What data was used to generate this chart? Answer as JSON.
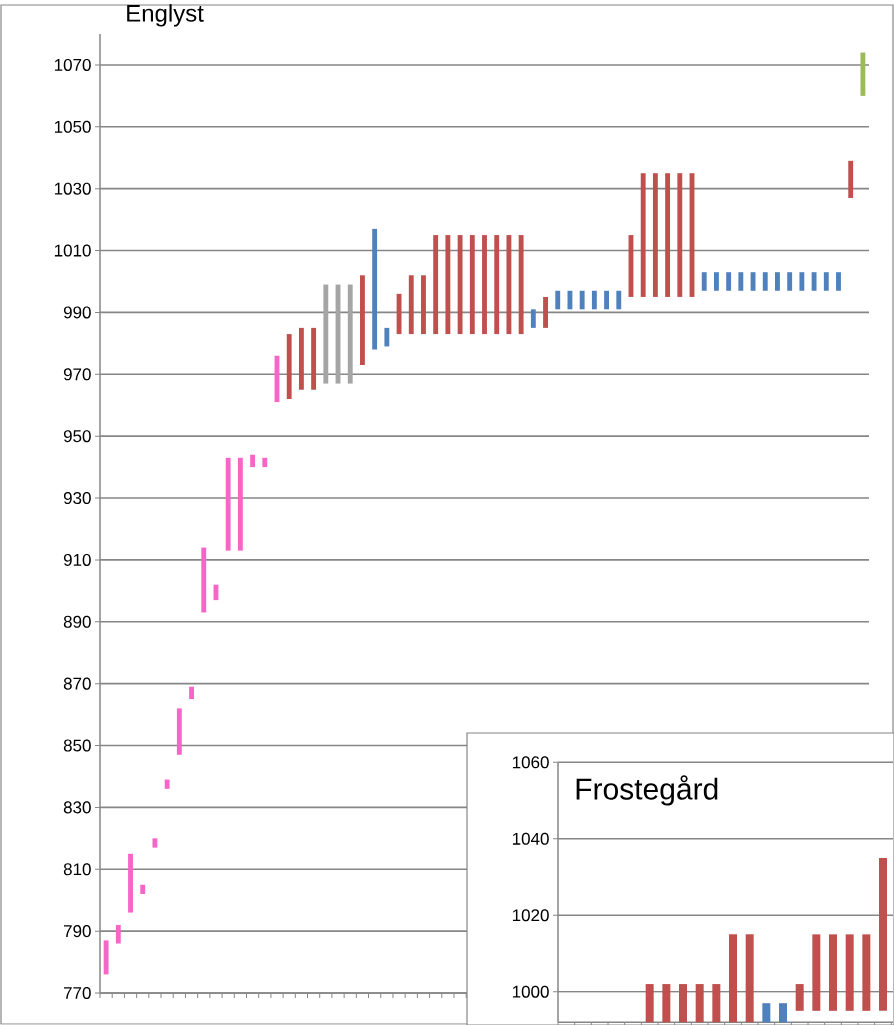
{
  "chart_data": [
    {
      "type": "bar",
      "title": "Englyst",
      "categories": [
        null,
        null,
        null,
        null,
        null,
        null,
        null,
        null,
        null,
        null,
        null,
        null,
        null,
        null,
        null,
        null,
        null,
        null,
        null,
        null,
        null,
        null,
        null,
        null,
        null,
        null,
        null,
        null,
        null,
        null,
        null,
        null,
        null,
        null,
        null,
        null,
        null,
        null,
        null,
        null,
        null,
        null,
        null,
        null,
        null,
        null,
        null,
        null,
        null,
        null,
        null,
        null,
        null,
        null,
        null,
        null,
        null,
        null,
        null,
        null,
        null,
        null,
        null
      ],
      "base": [
        776,
        786,
        796,
        802,
        817,
        836,
        847,
        865,
        893,
        897,
        913,
        913,
        940,
        940,
        961,
        962,
        965,
        965,
        967,
        967,
        967,
        973,
        978,
        979,
        983,
        983,
        983,
        983,
        983,
        983,
        983,
        983,
        983,
        983,
        983,
        985,
        985,
        991,
        991,
        991,
        991,
        991,
        991,
        995,
        995,
        995,
        995,
        995,
        995,
        997,
        997,
        997,
        997,
        997,
        997,
        997,
        997,
        997,
        997,
        997,
        997,
        1027,
        1060
      ],
      "values": [
        11,
        6,
        19,
        3,
        3,
        3,
        15,
        4,
        21,
        5,
        30,
        30,
        4,
        3,
        15,
        21,
        20,
        20,
        32,
        32,
        32,
        29,
        39,
        6,
        13,
        19,
        19,
        32,
        32,
        32,
        32,
        32,
        32,
        32,
        32,
        6,
        10,
        6,
        6,
        6,
        6,
        6,
        6,
        20,
        40,
        40,
        40,
        40,
        40,
        6,
        6,
        6,
        6,
        6,
        6,
        6,
        6,
        6,
        6,
        6,
        6,
        12,
        14
      ],
      "colors": [
        "#f766c7",
        "#f766c7",
        "#f766c7",
        "#f766c7",
        "#f766c7",
        "#f766c7",
        "#f766c7",
        "#f766c7",
        "#f766c7",
        "#f766c7",
        "#f766c7",
        "#f766c7",
        "#f766c7",
        "#f766c7",
        "#f766c7",
        "#c0504d",
        "#c0504d",
        "#c0504d",
        "#a5a5a5",
        "#a5a5a5",
        "#a5a5a5",
        "#c0504d",
        "#4f81bd",
        "#4f81bd",
        "#c0504d",
        "#c0504d",
        "#c0504d",
        "#c0504d",
        "#c0504d",
        "#c0504d",
        "#c0504d",
        "#c0504d",
        "#c0504d",
        "#c0504d",
        "#c0504d",
        "#4f81bd",
        "#c0504d",
        "#4f81bd",
        "#4f81bd",
        "#4f81bd",
        "#4f81bd",
        "#4f81bd",
        "#4f81bd",
        "#c0504d",
        "#c0504d",
        "#c0504d",
        "#c0504d",
        "#c0504d",
        "#c0504d",
        "#4f81bd",
        "#4f81bd",
        "#4f81bd",
        "#4f81bd",
        "#4f81bd",
        "#4f81bd",
        "#4f81bd",
        "#4f81bd",
        "#4f81bd",
        "#4f81bd",
        "#4f81bd",
        "#4f81bd",
        "#c0504d",
        "#9bbb59"
      ],
      "ylim": [
        770,
        1080
      ],
      "yticks": [
        770,
        790,
        810,
        830,
        850,
        870,
        890,
        910,
        930,
        950,
        970,
        990,
        1010,
        1030,
        1050,
        1070
      ],
      "grid": "y",
      "tick_labels": "y"
    },
    {
      "type": "bar",
      "title": "Frostegård",
      "categories": [
        null,
        null,
        null,
        null,
        null,
        null,
        null,
        null,
        null,
        null,
        null,
        null,
        null,
        null,
        null,
        null,
        null,
        null,
        null,
        null
      ],
      "base": [
        null,
        null,
        null,
        null,
        null,
        992,
        992,
        992,
        992,
        992,
        992,
        992,
        992,
        992,
        995,
        995,
        995,
        995,
        995,
        995
      ],
      "values": [
        null,
        null,
        null,
        null,
        null,
        10,
        10,
        10,
        10,
        10,
        23,
        23,
        5,
        5,
        7,
        20,
        20,
        20,
        20,
        40
      ],
      "colors": [
        "#c0504d",
        "#c0504d",
        "#c0504d",
        "#c0504d",
        "#c0504d",
        "#c0504d",
        "#c0504d",
        "#c0504d",
        "#c0504d",
        "#c0504d",
        "#c0504d",
        "#c0504d",
        "#4f81bd",
        "#4f81bd",
        "#c0504d",
        "#c0504d",
        "#c0504d",
        "#c0504d",
        "#c0504d",
        "#c0504d"
      ],
      "ylim": [
        992,
        1060
      ],
      "yticks": [
        1000,
        1020,
        1040,
        1060
      ],
      "grid": "y",
      "tick_labels": "y"
    }
  ]
}
